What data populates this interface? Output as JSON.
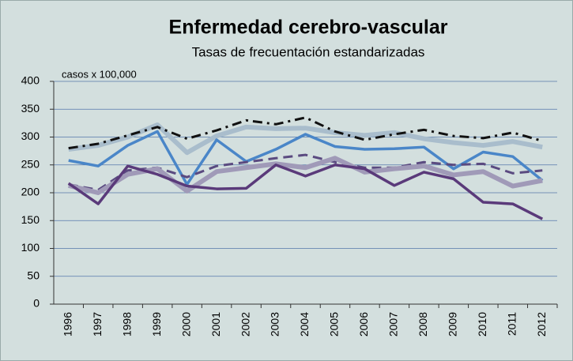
{
  "chart_data": {
    "type": "line",
    "title": "Enfermedad cerebro-vascular",
    "subtitle": "Tasas de frecuentación estandarizadas",
    "y_label": "casos x 100,000",
    "categories": [
      "1996",
      "1997",
      "1998",
      "1999",
      "2000",
      "2001",
      "2002",
      "2003",
      "2004",
      "2005",
      "2006",
      "2007",
      "2008",
      "2009",
      "2010",
      "2011",
      "2012"
    ],
    "series": [
      {
        "color": "#a9bdcc",
        "width": 6,
        "dash": "solid",
        "values": [
          278,
          285,
          300,
          322,
          272,
          302,
          318,
          315,
          316,
          308,
          303,
          308,
          297,
          290,
          285,
          292,
          282
        ]
      },
      {
        "color": "#111111",
        "width": 3,
        "dash": "dashdot",
        "values": [
          280,
          288,
          303,
          318,
          297,
          312,
          330,
          323,
          335,
          310,
          295,
          305,
          313,
          302,
          298,
          308,
          293
        ]
      },
      {
        "color": "#4a86c8",
        "width": 3.5,
        "dash": "solid",
        "values": [
          258,
          248,
          285,
          310,
          215,
          295,
          256,
          278,
          305,
          283,
          278,
          279,
          282,
          243,
          273,
          265,
          222
        ]
      },
      {
        "color": "#5a4a80",
        "width": 3,
        "dash": "dash",
        "values": [
          215,
          205,
          240,
          245,
          228,
          248,
          255,
          262,
          268,
          255,
          245,
          245,
          255,
          250,
          252,
          235,
          240
        ]
      },
      {
        "color": "#a09ab8",
        "width": 6,
        "dash": "solid",
        "values": [
          213,
          200,
          233,
          243,
          203,
          238,
          245,
          252,
          245,
          262,
          237,
          243,
          248,
          232,
          238,
          212,
          222
        ]
      },
      {
        "color": "#5a3a7a",
        "width": 3.5,
        "dash": "solid",
        "values": [
          217,
          180,
          248,
          233,
          212,
          207,
          208,
          250,
          230,
          250,
          243,
          213,
          237,
          225,
          183,
          180,
          153
        ]
      }
    ],
    "ylim": [
      0,
      400
    ],
    "yticks": [
      0,
      50,
      100,
      150,
      200,
      250,
      300,
      350,
      400
    ],
    "grid": true,
    "background": "#d3dfde"
  }
}
